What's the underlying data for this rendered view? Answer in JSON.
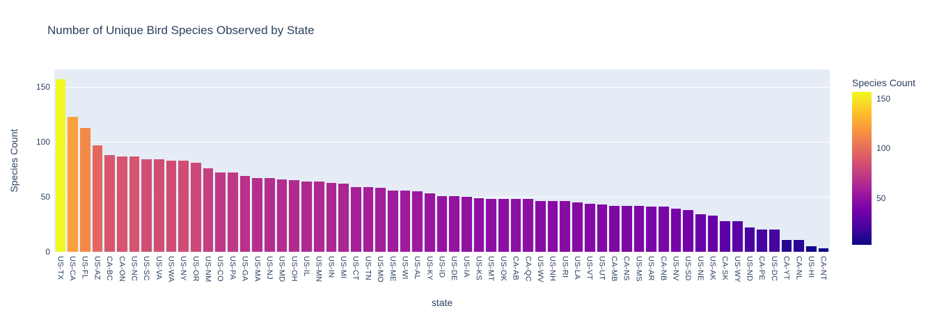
{
  "chart_data": {
    "type": "bar",
    "title": "Number of Unique Bird Species Observed by State",
    "xlabel": "state",
    "ylabel": "Species Count",
    "categories": [
      "US-TX",
      "US-CA",
      "US-FL",
      "US-AZ",
      "CA-BC",
      "CA-ON",
      "US-NC",
      "US-SC",
      "US-VA",
      "US-WA",
      "US-NY",
      "US-OR",
      "US-NM",
      "US-CO",
      "US-PA",
      "US-GA",
      "US-MA",
      "US-NJ",
      "US-MD",
      "US-OH",
      "US-IL",
      "US-MN",
      "US-IN",
      "US-MI",
      "US-CT",
      "US-TN",
      "US-MO",
      "US-ME",
      "US-WI",
      "US-AL",
      "US-KY",
      "US-ID",
      "US-DE",
      "US-IA",
      "US-KS",
      "US-MT",
      "US-OK",
      "CA-AB",
      "CA-QC",
      "US-WV",
      "US-NH",
      "US-RI",
      "US-LA",
      "US-VT",
      "US-UT",
      "CA-MB",
      "CA-NS",
      "US-MS",
      "US-AR",
      "CA-NB",
      "US-NV",
      "US-SD",
      "US-NE",
      "US-AK",
      "CA-SK",
      "US-WY",
      "US-ND",
      "CA-PE",
      "US-DC",
      "CA-YT",
      "CA-NL",
      "US-HI",
      "CA-NT"
    ],
    "values": [
      157,
      123,
      113,
      97,
      88,
      87,
      87,
      84,
      84,
      83,
      83,
      81,
      76,
      72,
      72,
      69,
      67,
      67,
      66,
      65,
      64,
      64,
      63,
      62,
      59,
      59,
      58,
      56,
      56,
      55,
      53,
      51,
      51,
      50,
      49,
      48,
      48,
      48,
      48,
      46,
      46,
      46,
      45,
      44,
      43,
      42,
      42,
      42,
      41,
      41,
      39,
      38,
      34,
      33,
      28,
      28,
      22,
      20,
      20,
      11,
      11,
      5,
      3
    ],
    "ylim": [
      0,
      166
    ],
    "yticks": [
      0,
      50,
      100,
      150
    ],
    "grid": true,
    "legend_position": "right",
    "colorbar": {
      "title": "Species Count",
      "ticks": [
        150,
        100,
        50
      ],
      "cmin": 3,
      "cmax": 157,
      "colorscale": "plasma"
    }
  },
  "colors": {
    "text": "#2a3f5f",
    "plot_bg": "#e5ecf6",
    "paper_bg": "#ffffff",
    "grid": "#ffffff",
    "plasma_stops": [
      "#0d0887",
      "#46039f",
      "#7201a8",
      "#9c179e",
      "#bd3786",
      "#d8576b",
      "#ed7953",
      "#fb9f3a",
      "#fdca26",
      "#f0f921"
    ]
  }
}
